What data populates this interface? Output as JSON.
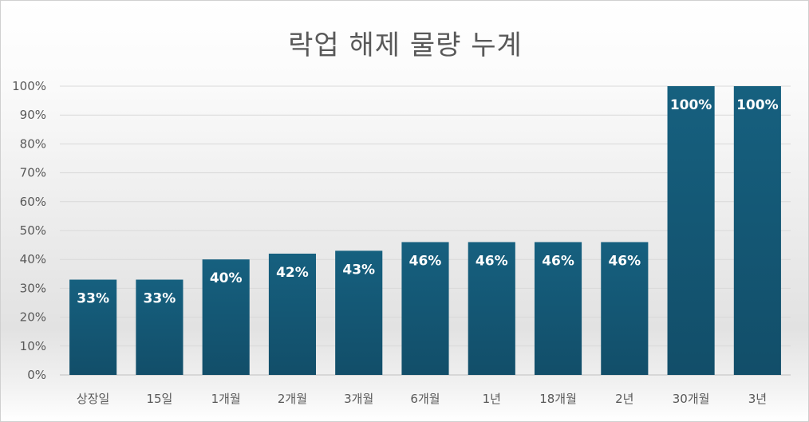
{
  "chart_data": {
    "type": "bar",
    "title": "락업 해제 물량 누계",
    "categories": [
      "상장일",
      "15일",
      "1개월",
      "2개월",
      "3개월",
      "6개월",
      "1년",
      "18개월",
      "2년",
      "30개월",
      "3년"
    ],
    "values": [
      33,
      33,
      40,
      42,
      43,
      46,
      46,
      46,
      46,
      100,
      100
    ],
    "data_labels": [
      "33%",
      "33%",
      "40%",
      "42%",
      "43%",
      "46%",
      "46%",
      "46%",
      "46%",
      "100%",
      "100%"
    ],
    "y_ticks": [
      "0%",
      "10%",
      "20%",
      "30%",
      "40%",
      "50%",
      "60%",
      "70%",
      "80%",
      "90%",
      "100%"
    ],
    "ylim": [
      0,
      100
    ],
    "ylabel": "",
    "xlabel": "",
    "grid": true,
    "legend": "none",
    "bar_color": "#155a78"
  }
}
